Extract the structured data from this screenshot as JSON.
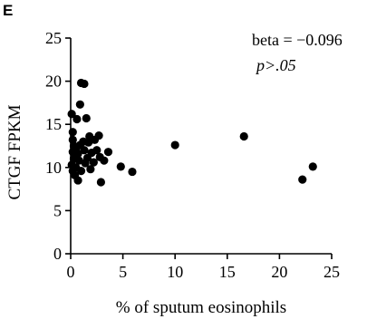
{
  "panel_label": "E",
  "chart_data": {
    "type": "scatter",
    "title": "",
    "xlabel": "% of sputum eosinophils",
    "ylabel": "CTGF FPKM",
    "xlim": [
      0,
      25
    ],
    "ylim": [
      0,
      25
    ],
    "xticks": [
      "0",
      "5",
      "10",
      "15",
      "20",
      "25"
    ],
    "yticks": [
      "0",
      "5",
      "10",
      "15",
      "20",
      "25"
    ],
    "grid": false,
    "annotations": {
      "beta": "beta = −0.096",
      "p": "p>.05"
    },
    "points": [
      {
        "x": 0.1,
        "y": 16.2
      },
      {
        "x": 0.2,
        "y": 14.1
      },
      {
        "x": 0.2,
        "y": 13.2
      },
      {
        "x": 0.3,
        "y": 12.5
      },
      {
        "x": 0.2,
        "y": 11.8
      },
      {
        "x": 0.3,
        "y": 11.0
      },
      {
        "x": 0.1,
        "y": 10.3
      },
      {
        "x": 0.2,
        "y": 9.6
      },
      {
        "x": 0.4,
        "y": 9.1
      },
      {
        "x": 0.5,
        "y": 10.0
      },
      {
        "x": 0.5,
        "y": 12.2
      },
      {
        "x": 0.6,
        "y": 15.6
      },
      {
        "x": 0.7,
        "y": 11.6
      },
      {
        "x": 0.8,
        "y": 10.8
      },
      {
        "x": 0.7,
        "y": 8.5
      },
      {
        "x": 0.9,
        "y": 12.6
      },
      {
        "x": 0.9,
        "y": 17.3
      },
      {
        "x": 1.0,
        "y": 19.8
      },
      {
        "x": 1.3,
        "y": 19.7
      },
      {
        "x": 1.0,
        "y": 9.6
      },
      {
        "x": 1.2,
        "y": 13.0
      },
      {
        "x": 1.3,
        "y": 12.0
      },
      {
        "x": 1.4,
        "y": 10.5
      },
      {
        "x": 1.5,
        "y": 15.7
      },
      {
        "x": 1.6,
        "y": 11.1
      },
      {
        "x": 1.7,
        "y": 12.9
      },
      {
        "x": 1.8,
        "y": 13.6
      },
      {
        "x": 1.9,
        "y": 9.8
      },
      {
        "x": 2.0,
        "y": 11.7
      },
      {
        "x": 2.2,
        "y": 10.6
      },
      {
        "x": 2.3,
        "y": 13.2
      },
      {
        "x": 2.5,
        "y": 12.0
      },
      {
        "x": 2.7,
        "y": 13.7
      },
      {
        "x": 2.8,
        "y": 11.2
      },
      {
        "x": 2.9,
        "y": 8.3
      },
      {
        "x": 3.2,
        "y": 10.8
      },
      {
        "x": 3.6,
        "y": 11.8
      },
      {
        "x": 4.8,
        "y": 10.1
      },
      {
        "x": 5.9,
        "y": 9.5
      },
      {
        "x": 10.0,
        "y": 12.6
      },
      {
        "x": 16.6,
        "y": 13.6
      },
      {
        "x": 22.2,
        "y": 8.6
      },
      {
        "x": 23.2,
        "y": 10.1
      }
    ]
  }
}
